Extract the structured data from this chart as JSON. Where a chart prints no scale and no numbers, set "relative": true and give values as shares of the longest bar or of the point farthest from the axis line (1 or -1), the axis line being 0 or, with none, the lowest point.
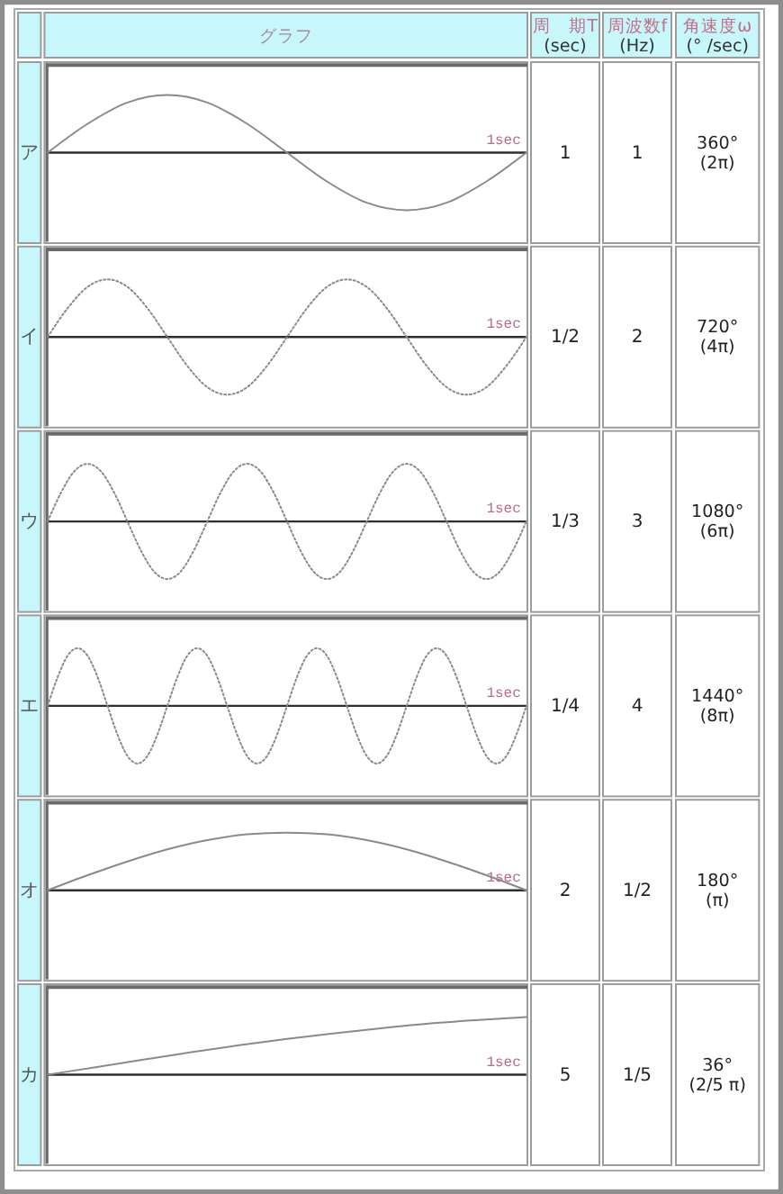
{
  "chart_data": [
    {
      "type": "other",
      "annotations": [
        "グラフ",
        "周　期T\n(sec)",
        "周波数f\n(Hz)",
        "角速度ω\n(° /sec)"
      ]
    },
    {
      "type": "line",
      "title": "ア",
      "relative": true,
      "xlabel": "1sec",
      "color": "#8a8a8a",
      "line_style": "solid",
      "categories": [
        null,
        null,
        null,
        null,
        null,
        null,
        null,
        null,
        null,
        null,
        null,
        null,
        null
      ],
      "values": [
        0,
        0.5,
        0.87,
        1,
        0.87,
        0.5,
        0,
        -0.5,
        -0.87,
        -1,
        -0.87,
        -0.5,
        0
      ],
      "annotations": [
        "1",
        "1",
        "360°\n(2π)"
      ]
    },
    {
      "type": "line",
      "title": "イ",
      "relative": true,
      "xlabel": "1sec",
      "color": "#8a8a8a",
      "line_style": "dotted",
      "categories": [
        null,
        null,
        null,
        null,
        null,
        null,
        null,
        null,
        null,
        null,
        null,
        null,
        null,
        null,
        null,
        null,
        null,
        null,
        null,
        null,
        null,
        null,
        null,
        null,
        null
      ],
      "values": [
        0,
        0.5,
        0.87,
        1,
        0.87,
        0.5,
        0,
        -0.5,
        -0.87,
        -1,
        -0.87,
        -0.5,
        0,
        0.5,
        0.87,
        1,
        0.87,
        0.5,
        0,
        -0.5,
        -0.87,
        -1,
        -0.87,
        -0.5,
        0
      ],
      "annotations": [
        "1/2",
        "2",
        "720°\n(4π)"
      ]
    },
    {
      "type": "line",
      "title": "ウ",
      "relative": true,
      "xlabel": "1sec",
      "color": "#8a8a8a",
      "line_style": "dotted",
      "categories": [
        null,
        null,
        null,
        null,
        null,
        null,
        null,
        null,
        null,
        null,
        null,
        null,
        null,
        null,
        null,
        null,
        null,
        null,
        null,
        null,
        null,
        null,
        null,
        null,
        null,
        null,
        null,
        null,
        null,
        null,
        null,
        null,
        null,
        null,
        null,
        null,
        null
      ],
      "values": [
        0,
        0.5,
        0.87,
        1,
        0.87,
        0.5,
        0,
        -0.5,
        -0.87,
        -1,
        -0.87,
        -0.5,
        0,
        0.5,
        0.87,
        1,
        0.87,
        0.5,
        0,
        -0.5,
        -0.87,
        -1,
        -0.87,
        -0.5,
        0,
        0.5,
        0.87,
        1,
        0.87,
        0.5,
        0,
        -0.5,
        -0.87,
        -1,
        -0.87,
        -0.5,
        0
      ],
      "annotations": [
        "1/3",
        "3",
        "1080°\n(6π)"
      ]
    },
    {
      "type": "line",
      "title": "エ",
      "relative": true,
      "xlabel": "1sec",
      "color": "#8a8a8a",
      "line_style": "dotted",
      "categories": [
        null,
        null,
        null,
        null,
        null,
        null,
        null,
        null,
        null,
        null,
        null,
        null,
        null,
        null,
        null,
        null,
        null,
        null,
        null,
        null,
        null,
        null,
        null,
        null,
        null,
        null,
        null,
        null,
        null,
        null,
        null,
        null,
        null,
        null,
        null,
        null,
        null,
        null,
        null,
        null,
        null,
        null,
        null,
        null,
        null,
        null,
        null,
        null,
        null
      ],
      "values": [
        0,
        0.5,
        0.87,
        1,
        0.87,
        0.5,
        0,
        -0.5,
        -0.87,
        -1,
        -0.87,
        -0.5,
        0,
        0.5,
        0.87,
        1,
        0.87,
        0.5,
        0,
        -0.5,
        -0.87,
        -1,
        -0.87,
        -0.5,
        0,
        0.5,
        0.87,
        1,
        0.87,
        0.5,
        0,
        -0.5,
        -0.87,
        -1,
        -0.87,
        -0.5,
        0,
        0.5,
        0.87,
        1,
        0.87,
        0.5,
        0,
        -0.5,
        -0.87,
        -1,
        -0.87,
        -0.5,
        0
      ],
      "annotations": [
        "1/4",
        "4",
        "1440°\n(8π)"
      ]
    },
    {
      "type": "line",
      "title": "オ",
      "relative": true,
      "xlabel": "1sec",
      "color": "#8a8a8a",
      "line_style": "solid",
      "categories": [
        null,
        null,
        null,
        null,
        null,
        null,
        null,
        null,
        null,
        null,
        null,
        null,
        null
      ],
      "values": [
        0,
        0.26,
        0.5,
        0.71,
        0.87,
        0.97,
        1,
        0.97,
        0.87,
        0.71,
        0.5,
        0.26,
        0
      ],
      "annotations": [
        "2",
        "1/2",
        "180°\n(π)"
      ]
    },
    {
      "type": "line",
      "title": "カ",
      "relative": true,
      "xlabel": "1sec",
      "color": "#8a8a8a",
      "line_style": "solid",
      "categories": [
        null,
        null,
        null,
        null,
        null,
        null,
        null,
        null,
        null,
        null,
        null
      ],
      "values": [
        0,
        0.13,
        0.26,
        0.39,
        0.51,
        0.62,
        0.72,
        0.81,
        0.89,
        0.95,
        1
      ],
      "annotations": [
        "5",
        "1/5",
        "36°\n(2/5 π)"
      ]
    }
  ]
}
